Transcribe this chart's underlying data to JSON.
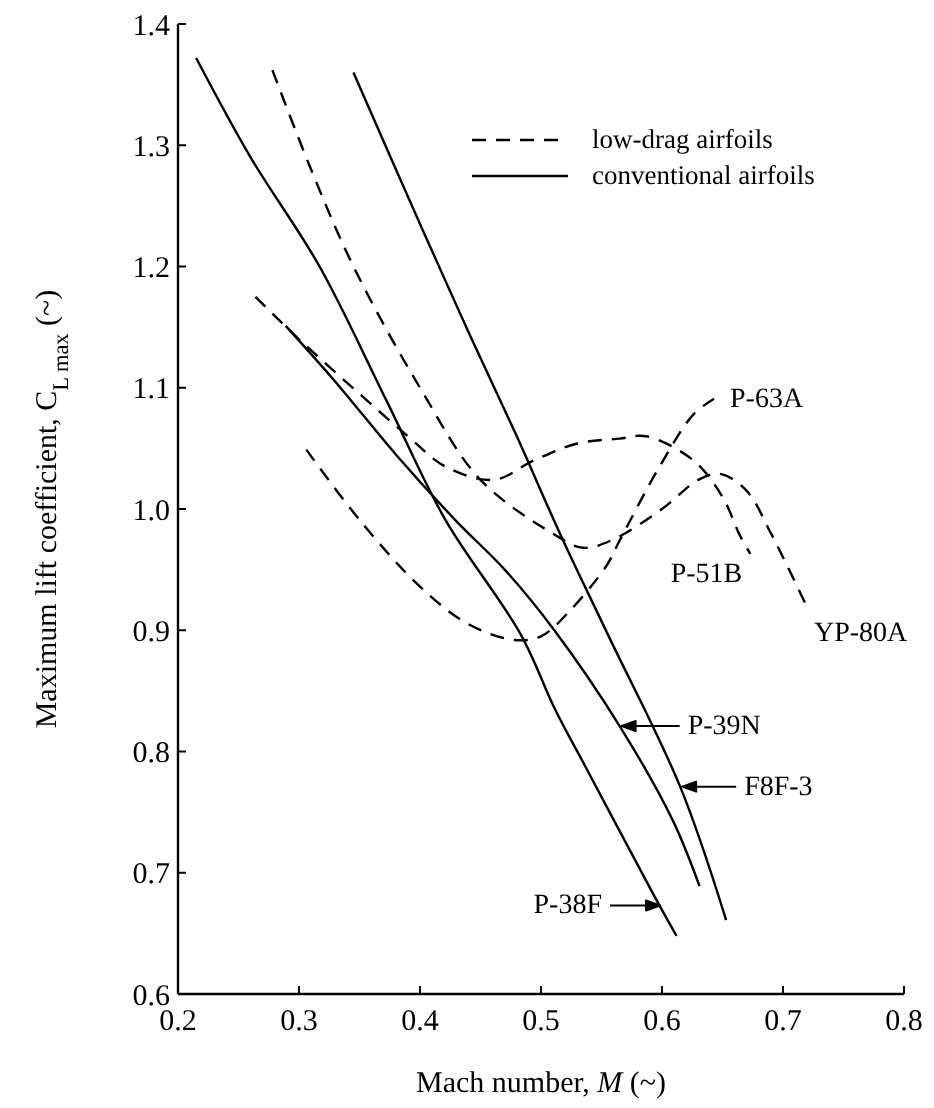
{
  "chart_data": {
    "type": "line",
    "xlabel": "Mach number, M (~)",
    "ylabel": "Maximum lift coefficient, C$_{L max}$   (~)",
    "xlim": [
      0.2,
      0.8
    ],
    "ylim": [
      0.6,
      1.4
    ],
    "xticks": [
      0.2,
      0.3,
      0.4,
      0.5,
      0.6,
      0.7,
      0.8
    ],
    "yticks": [
      0.6,
      0.7,
      0.8,
      0.9,
      {
        "value": 1,
        "label": "1.0"
      },
      1.1,
      1.2,
      1.3,
      1.4
    ],
    "grid": false,
    "legend": "top right",
    "marker": "none",
    "series": [
      {
        "name": "low-drag airfoils",
        "color": "#000000",
        "line_style": "dashed",
        "x": [
          0.278,
          0.31,
          0.345,
          0.4,
          0.45,
          0.511,
          0.535,
          0.56,
          0.6,
          0.63,
          0.648,
          0.67,
          0.69,
          0.705,
          0.719
        ],
        "values": [
          1.362,
          1.28,
          1.2,
          1.1,
          1.024,
          0.979,
          0.968,
          0.975,
          1.0,
          1.024,
          1.029,
          1.015,
          0.98,
          0.95,
          0.921
        ]
      },
      {
        "name": "conventional airfoils",
        "color": "#000000",
        "line_style": "solid",
        "x": [
          0.215,
          0.26,
          0.317,
          0.372,
          0.421,
          0.483,
          0.512,
          0.537,
          0.593,
          0.612
        ],
        "values": [
          1.372,
          1.29,
          1.2,
          1.09,
          0.991,
          0.897,
          0.834,
          0.787,
          0.682,
          0.648
        ]
      },
      {
        "color": "#000000",
        "line_style": "dashed",
        "x": [
          0.264,
          0.3,
          0.35,
          0.39,
          0.421,
          0.461,
          0.494,
          0.53,
          0.565,
          0.587,
          0.626,
          0.65,
          0.664,
          0.673
        ],
        "values": [
          1.175,
          1.14,
          1.095,
          1.06,
          1.035,
          1.024,
          1.04,
          1.054,
          1.058,
          1.06,
          1.04,
          1.01,
          0.979,
          0.963
        ]
      },
      {
        "color": "#000000",
        "line_style": "dashed",
        "x": [
          0.306,
          0.35,
          0.4,
          0.44,
          0.478,
          0.5,
          0.521,
          0.554,
          0.565,
          0.598,
          0.626,
          0.643
        ],
        "values": [
          1.049,
          0.991,
          0.936,
          0.905,
          0.892,
          0.895,
          0.913,
          0.953,
          0.974,
          1.035,
          1.078,
          1.091
        ]
      },
      {
        "color": "#000000",
        "line_style": "solid",
        "x": [
          0.289,
          0.33,
          0.38,
          0.43,
          0.47,
          0.511,
          0.565,
          0.609,
          0.631
        ],
        "values": [
          1.151,
          1.105,
          1.045,
          0.99,
          0.95,
          0.9,
          0.821,
          0.743,
          0.689
        ]
      },
      {
        "color": "#000000",
        "line_style": "solid",
        "x": [
          0.345,
          0.4,
          0.441,
          0.48,
          0.516,
          0.555,
          0.615,
          0.653
        ],
        "values": [
          1.36,
          1.235,
          1.144,
          1.06,
          0.979,
          0.897,
          0.771,
          0.661
        ]
      }
    ],
    "annotations": [
      {
        "text": "P-63A",
        "x": 0.643,
        "y": 1.091
      },
      {
        "text": "P-51B",
        "x": 0.673,
        "y": 0.963
      },
      {
        "text": "YP-80A",
        "x": 0.719,
        "y": 0.921
      },
      {
        "text": "P-39N",
        "x": 0.565,
        "y": 0.821
      },
      {
        "text": "F8F-3",
        "x": 0.615,
        "y": 0.771
      },
      {
        "text": "P-38F",
        "x": 0.6,
        "y": 0.673
      }
    ]
  }
}
